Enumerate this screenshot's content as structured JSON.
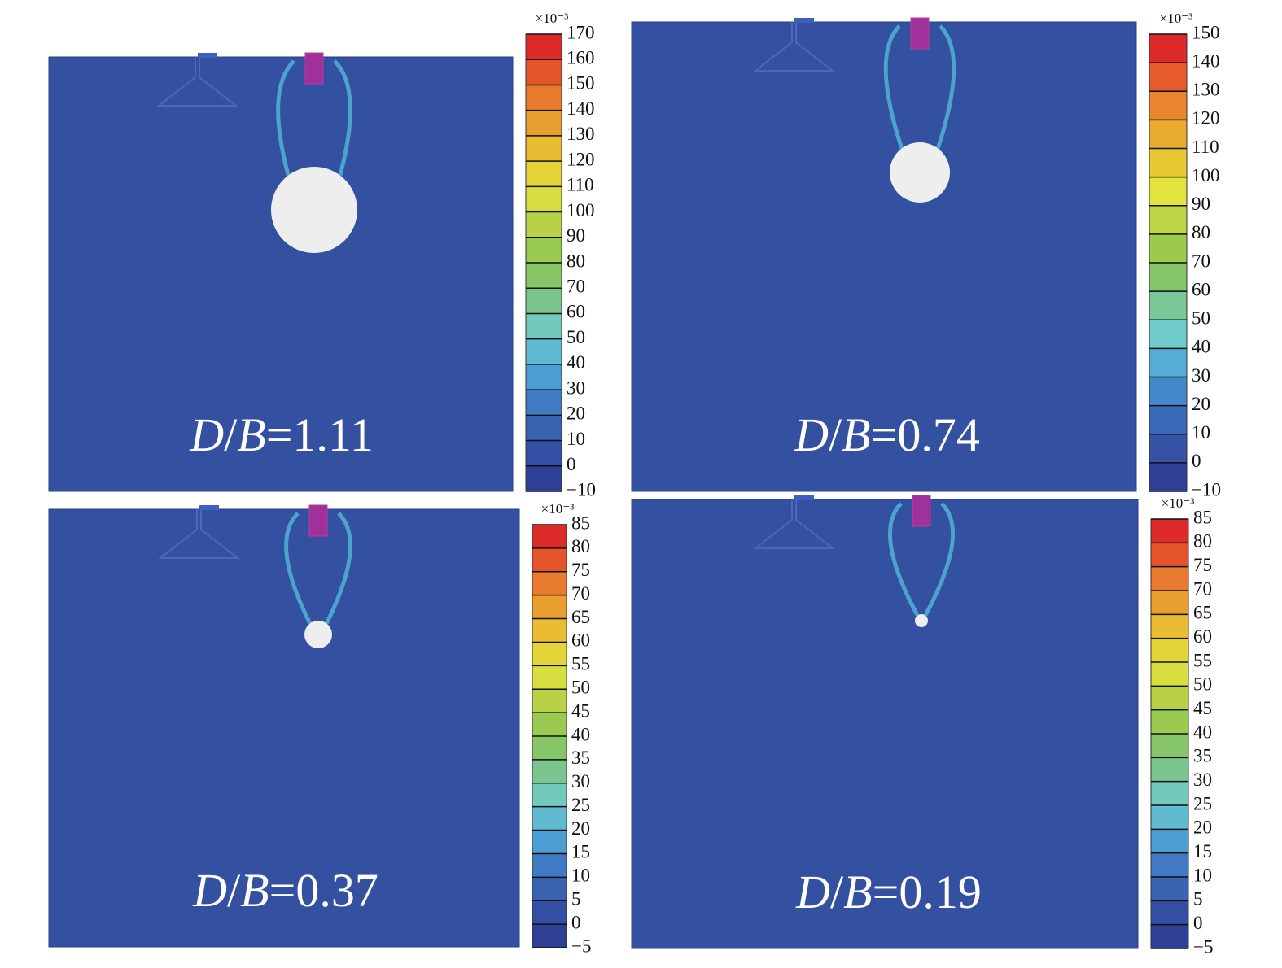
{
  "panels": [
    {
      "label": "D/B=1.11",
      "colorbar": {
        "unit": "×10⁻³",
        "ticks": [
          170,
          160,
          150,
          140,
          130,
          120,
          110,
          100,
          90,
          80,
          70,
          60,
          50,
          40,
          30,
          20,
          10,
          0,
          {
            "value": -10,
            "label": "−10"
          }
        ]
      }
    },
    {
      "label": "D/B=0.74",
      "colorbar": {
        "unit": "×10⁻³",
        "ticks": [
          150,
          140,
          130,
          120,
          110,
          100,
          90,
          80,
          70,
          60,
          50,
          40,
          30,
          20,
          10,
          0,
          {
            "value": -10,
            "label": "−10"
          }
        ]
      }
    },
    {
      "label": "D/B=0.37",
      "colorbar": {
        "unit": "×10⁻³",
        "ticks": [
          85,
          80,
          75,
          70,
          65,
          60,
          55,
          50,
          45,
          40,
          35,
          30,
          25,
          20,
          15,
          10,
          5,
          0,
          {
            "value": -5,
            "label": "−5"
          }
        ]
      }
    },
    {
      "label": "D/B=0.19",
      "colorbar": {
        "unit": "×10⁻³",
        "ticks": [
          85,
          80,
          75,
          70,
          65,
          60,
          55,
          50,
          45,
          40,
          35,
          30,
          25,
          20,
          15,
          10,
          5,
          0,
          {
            "value": -5,
            "label": "−5"
          }
        ]
      }
    }
  ]
}
